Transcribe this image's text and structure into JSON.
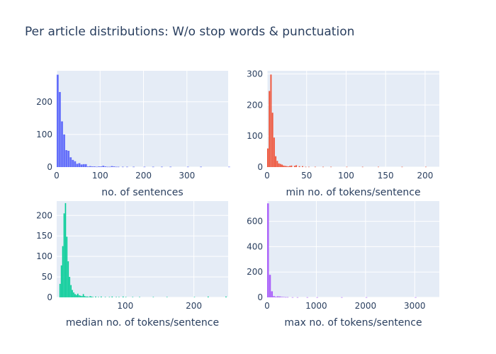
{
  "figure": {
    "title": "Per article distributions: W/o stop words & punctuation"
  },
  "chart_data": [
    {
      "type": "bar",
      "name": "sentences-histogram",
      "xlabel": "no. of sentences",
      "ylabel": "",
      "color": "#636efa",
      "xlim": [
        0,
        395
      ],
      "ylim": [
        0,
        295
      ],
      "xticks": [
        0,
        100,
        200,
        300
      ],
      "yticks": [
        0,
        100,
        200
      ],
      "bin_width": 5,
      "bins_x": [
        0,
        5,
        10,
        15,
        20,
        25,
        30,
        35,
        40,
        45,
        50,
        55,
        60,
        65,
        70,
        75,
        80,
        85,
        90,
        95,
        100,
        105,
        110,
        115,
        120,
        125,
        130,
        135,
        140,
        150,
        160,
        175,
        200,
        220,
        240,
        260,
        300,
        330,
        395
      ],
      "values": [
        283,
        230,
        140,
        100,
        52,
        50,
        30,
        22,
        18,
        10,
        12,
        8,
        9,
        9,
        2,
        3,
        2,
        2,
        1,
        2,
        2,
        4,
        2,
        1,
        1,
        3,
        2,
        1,
        1,
        1,
        1,
        1,
        1,
        1,
        1,
        1,
        1,
        1,
        1
      ]
    },
    {
      "type": "bar",
      "name": "min-tokens-histogram",
      "xlabel": "min no. of tokens/sentence",
      "ylabel": "",
      "color": "#ef553b",
      "xlim": [
        0,
        218
      ],
      "ylim": [
        0,
        310
      ],
      "xticks": [
        0,
        50,
        100,
        150,
        200
      ],
      "yticks": [
        0,
        100,
        200,
        300
      ],
      "bin_width": 2,
      "bins_x": [
        0,
        2,
        4,
        6,
        8,
        10,
        12,
        14,
        16,
        18,
        20,
        22,
        24,
        26,
        28,
        30,
        34,
        36,
        40,
        44,
        48,
        52,
        60,
        70,
        80,
        100,
        120,
        140,
        170,
        200
      ],
      "values": [
        60,
        245,
        298,
        175,
        95,
        35,
        20,
        12,
        10,
        8,
        5,
        4,
        3,
        2,
        4,
        5,
        4,
        6,
        3,
        3,
        1,
        1,
        1,
        1,
        1,
        1,
        1,
        1,
        1,
        1
      ]
    },
    {
      "type": "bar",
      "name": "median-tokens-histogram",
      "xlabel": "median no. of tokens/sentence",
      "ylabel": "",
      "color": "#00cc96",
      "xlim": [
        0,
        250
      ],
      "ylim": [
        0,
        235
      ],
      "xticks": [
        100,
        200
      ],
      "yticks": [
        0,
        50,
        100,
        150,
        200
      ],
      "bin_width": 2,
      "bins_x": [
        4,
        6,
        8,
        10,
        12,
        14,
        16,
        18,
        20,
        22,
        24,
        26,
        28,
        30,
        32,
        34,
        36,
        38,
        40,
        42,
        44,
        46,
        48,
        50,
        52,
        56,
        60,
        64,
        70,
        76,
        80,
        86,
        90,
        96,
        100,
        110,
        120,
        140,
        160,
        200,
        220,
        246
      ],
      "values": [
        33,
        78,
        125,
        205,
        230,
        148,
        88,
        50,
        30,
        18,
        12,
        8,
        6,
        9,
        5,
        4,
        3,
        8,
        3,
        2,
        2,
        1,
        3,
        2,
        1,
        2,
        1,
        2,
        1,
        1,
        2,
        1,
        1,
        2,
        1,
        1,
        1,
        1,
        1,
        1,
        2,
        2
      ]
    },
    {
      "type": "bar",
      "name": "max-tokens-histogram",
      "xlabel": "max no. of tokens/sentence",
      "ylabel": "",
      "color": "#ab63fa",
      "xlim": [
        0,
        3500
      ],
      "ylim": [
        0,
        760
      ],
      "xticks": [
        0,
        1000,
        2000,
        3000
      ],
      "yticks": [
        0,
        200,
        400,
        600
      ],
      "bin_width": 40,
      "bins_x": [
        0,
        40,
        80,
        120,
        160,
        200,
        240,
        280,
        320,
        360,
        400,
        500,
        600,
        800,
        1000,
        1500,
        2000,
        3000
      ],
      "values": [
        742,
        178,
        48,
        10,
        5,
        8,
        7,
        4,
        3,
        2,
        2,
        1,
        1,
        1,
        1,
        1,
        1,
        1
      ]
    }
  ]
}
